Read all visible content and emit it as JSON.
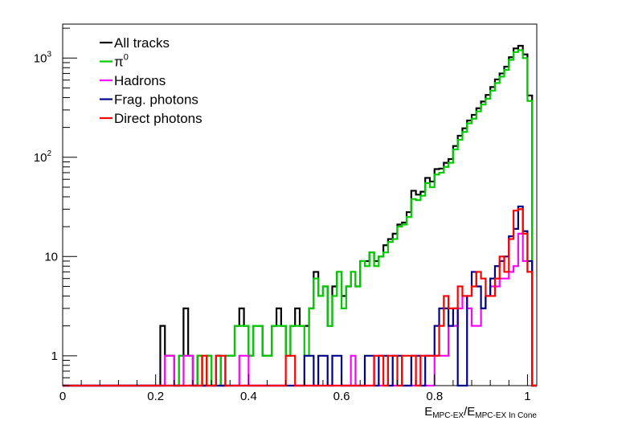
{
  "chart_data": {
    "type": "line",
    "title": "",
    "xlabel": {
      "main": "E",
      "sub1": "MPC-EX",
      "sep": "/E",
      "sub2": "MPC-EX In Cone"
    },
    "ylabel": "",
    "xlim": [
      0,
      1.02
    ],
    "ylim": [
      0.5,
      2200
    ],
    "y_scale": "log",
    "x_ticks": [
      "0",
      "0.2",
      "0.4",
      "0.6",
      "0.8",
      "1"
    ],
    "x_tick_values": [
      0,
      0.2,
      0.4,
      0.6,
      0.8,
      1
    ],
    "y_ticks": [
      {
        "value": 1,
        "label": "1"
      },
      {
        "value": 10,
        "label": "10"
      },
      {
        "value": 100,
        "base": "10",
        "exp": "2"
      },
      {
        "value": 1000,
        "base": "10",
        "exp": "3"
      }
    ],
    "grid": false,
    "legend_placement": "top-left",
    "bin_width": 0.01,
    "series": [
      {
        "name": "All tracks",
        "color": "#000000",
        "bins": [
          [
            0.21,
            2
          ],
          [
            0.22,
            1
          ],
          [
            0.23,
            1
          ],
          [
            0.25,
            1
          ],
          [
            0.26,
            3
          ],
          [
            0.27,
            1
          ],
          [
            0.29,
            1
          ],
          [
            0.31,
            1
          ],
          [
            0.33,
            1
          ],
          [
            0.35,
            1
          ],
          [
            0.36,
            1
          ],
          [
            0.37,
            2
          ],
          [
            0.38,
            3
          ],
          [
            0.39,
            2
          ],
          [
            0.4,
            1
          ],
          [
            0.41,
            2
          ],
          [
            0.42,
            2
          ],
          [
            0.43,
            1
          ],
          [
            0.44,
            1
          ],
          [
            0.45,
            2
          ],
          [
            0.46,
            3
          ],
          [
            0.47,
            2
          ],
          [
            0.48,
            1
          ],
          [
            0.49,
            2
          ],
          [
            0.5,
            3
          ],
          [
            0.51,
            2
          ],
          [
            0.52,
            2
          ],
          [
            0.53,
            3
          ],
          [
            0.54,
            7
          ],
          [
            0.55,
            4
          ],
          [
            0.56,
            5
          ],
          [
            0.57,
            2
          ],
          [
            0.58,
            5
          ],
          [
            0.59,
            7
          ],
          [
            0.6,
            4
          ],
          [
            0.61,
            5
          ],
          [
            0.62,
            7
          ],
          [
            0.63,
            5
          ],
          [
            0.64,
            9
          ],
          [
            0.65,
            9
          ],
          [
            0.66,
            11
          ],
          [
            0.67,
            9
          ],
          [
            0.68,
            10
          ],
          [
            0.69,
            13
          ],
          [
            0.7,
            15
          ],
          [
            0.71,
            17
          ],
          [
            0.72,
            21
          ],
          [
            0.73,
            22
          ],
          [
            0.74,
            28
          ],
          [
            0.75,
            46
          ],
          [
            0.76,
            42
          ],
          [
            0.77,
            45
          ],
          [
            0.78,
            62
          ],
          [
            0.79,
            57
          ],
          [
            0.8,
            76
          ],
          [
            0.81,
            77
          ],
          [
            0.82,
            88
          ],
          [
            0.83,
            96
          ],
          [
            0.84,
            130
          ],
          [
            0.85,
            165
          ],
          [
            0.86,
            196
          ],
          [
            0.87,
            235
          ],
          [
            0.88,
            268
          ],
          [
            0.89,
            312
          ],
          [
            0.9,
            365
          ],
          [
            0.91,
            425
          ],
          [
            0.92,
            510
          ],
          [
            0.93,
            610
          ],
          [
            0.94,
            700
          ],
          [
            0.95,
            820
          ],
          [
            0.96,
            1020
          ],
          [
            0.97,
            1250
          ],
          [
            0.98,
            1330
          ],
          [
            0.99,
            1090
          ],
          [
            1.0,
            420
          ]
        ]
      },
      {
        "name": "π⁰",
        "label_base": "π",
        "label_sup": "0",
        "color": "#00cc00",
        "bins": [
          [
            0.22,
            1
          ],
          [
            0.23,
            1
          ],
          [
            0.25,
            1
          ],
          [
            0.26,
            1
          ],
          [
            0.27,
            1
          ],
          [
            0.29,
            1
          ],
          [
            0.31,
            1
          ],
          [
            0.33,
            1
          ],
          [
            0.35,
            1
          ],
          [
            0.36,
            1
          ],
          [
            0.37,
            2
          ],
          [
            0.38,
            2
          ],
          [
            0.39,
            2
          ],
          [
            0.4,
            1
          ],
          [
            0.41,
            2
          ],
          [
            0.42,
            2
          ],
          [
            0.43,
            1
          ],
          [
            0.44,
            1
          ],
          [
            0.45,
            2
          ],
          [
            0.46,
            2
          ],
          [
            0.47,
            2
          ],
          [
            0.48,
            1
          ],
          [
            0.49,
            2
          ],
          [
            0.5,
            2
          ],
          [
            0.51,
            2
          ],
          [
            0.52,
            1
          ],
          [
            0.53,
            3
          ],
          [
            0.54,
            6
          ],
          [
            0.55,
            4
          ],
          [
            0.56,
            5
          ],
          [
            0.57,
            2
          ],
          [
            0.58,
            4
          ],
          [
            0.59,
            7
          ],
          [
            0.6,
            3
          ],
          [
            0.61,
            5
          ],
          [
            0.62,
            7
          ],
          [
            0.63,
            5
          ],
          [
            0.64,
            9
          ],
          [
            0.65,
            8
          ],
          [
            0.66,
            11
          ],
          [
            0.67,
            8
          ],
          [
            0.68,
            10
          ],
          [
            0.69,
            11
          ],
          [
            0.7,
            14
          ],
          [
            0.71,
            15
          ],
          [
            0.72,
            20
          ],
          [
            0.73,
            21
          ],
          [
            0.74,
            25
          ],
          [
            0.75,
            38
          ],
          [
            0.76,
            37
          ],
          [
            0.77,
            41
          ],
          [
            0.78,
            55
          ],
          [
            0.79,
            50
          ],
          [
            0.8,
            67
          ],
          [
            0.81,
            70
          ],
          [
            0.82,
            80
          ],
          [
            0.83,
            88
          ],
          [
            0.84,
            120
          ],
          [
            0.85,
            150
          ],
          [
            0.86,
            180
          ],
          [
            0.87,
            220
          ],
          [
            0.88,
            245
          ],
          [
            0.89,
            290
          ],
          [
            0.9,
            340
          ],
          [
            0.91,
            390
          ],
          [
            0.92,
            470
          ],
          [
            0.93,
            560
          ],
          [
            0.94,
            650
          ],
          [
            0.95,
            760
          ],
          [
            0.96,
            960
          ],
          [
            0.97,
            1150
          ],
          [
            0.98,
            1200
          ],
          [
            0.99,
            1000
          ],
          [
            1.0,
            370
          ]
        ]
      },
      {
        "name": "Hadrons",
        "color": "#ff00ff",
        "bins": [
          [
            0.22,
            1
          ],
          [
            0.23,
            1
          ],
          [
            0.26,
            1
          ],
          [
            0.27,
            1
          ],
          [
            0.38,
            1
          ],
          [
            0.39,
            1
          ],
          [
            0.62,
            1
          ],
          [
            0.8,
            1
          ],
          [
            0.81,
            1
          ],
          [
            0.82,
            1
          ],
          [
            0.83,
            2
          ],
          [
            0.84,
            2
          ],
          [
            0.85,
            3
          ],
          [
            0.86,
            4
          ],
          [
            0.87,
            3
          ],
          [
            0.88,
            2
          ],
          [
            0.89,
            2
          ],
          [
            0.9,
            3
          ],
          [
            0.91,
            4
          ],
          [
            0.92,
            5
          ],
          [
            0.93,
            5
          ],
          [
            0.94,
            6
          ],
          [
            0.95,
            6
          ],
          [
            0.96,
            7
          ],
          [
            0.97,
            8
          ],
          [
            0.98,
            17
          ],
          [
            0.99,
            9
          ],
          [
            1.0,
            7
          ]
        ]
      },
      {
        "name": "Frag. photons",
        "color": "#00008b",
        "bins": [
          [
            0.52,
            1
          ],
          [
            0.53,
            1
          ],
          [
            0.55,
            1
          ],
          [
            0.56,
            1
          ],
          [
            0.58,
            1
          ],
          [
            0.59,
            1
          ],
          [
            0.65,
            1
          ],
          [
            0.66,
            1
          ],
          [
            0.68,
            1
          ],
          [
            0.69,
            1
          ],
          [
            0.71,
            1
          ],
          [
            0.72,
            1
          ],
          [
            0.75,
            1
          ],
          [
            0.76,
            1
          ],
          [
            0.78,
            1
          ],
          [
            0.79,
            1
          ],
          [
            0.8,
            2
          ],
          [
            0.81,
            3
          ],
          [
            0.82,
            3
          ],
          [
            0.83,
            2
          ],
          [
            0.84,
            3
          ],
          [
            0.87,
            4
          ],
          [
            0.88,
            7
          ],
          [
            0.89,
            5
          ],
          [
            0.9,
            3
          ],
          [
            0.91,
            4
          ],
          [
            0.92,
            6
          ],
          [
            0.93,
            8
          ],
          [
            0.94,
            9
          ],
          [
            0.95,
            10
          ],
          [
            0.96,
            16
          ],
          [
            0.97,
            19
          ],
          [
            0.98,
            32
          ],
          [
            0.99,
            18
          ],
          [
            1.0,
            9
          ]
        ]
      },
      {
        "name": "Direct photons",
        "color": "#ff0000",
        "bins": [
          [
            0.3,
            1
          ],
          [
            0.33,
            1
          ],
          [
            0.34,
            1
          ],
          [
            0.48,
            1
          ],
          [
            0.49,
            1
          ],
          [
            0.67,
            1
          ],
          [
            0.68,
            1
          ],
          [
            0.7,
            1
          ],
          [
            0.71,
            1
          ],
          [
            0.73,
            1
          ],
          [
            0.74,
            1
          ],
          [
            0.75,
            1
          ],
          [
            0.77,
            1
          ],
          [
            0.78,
            1
          ],
          [
            0.79,
            1
          ],
          [
            0.8,
            1
          ],
          [
            0.81,
            2
          ],
          [
            0.82,
            4
          ],
          [
            0.83,
            3
          ],
          [
            0.84,
            3
          ],
          [
            0.85,
            5
          ],
          [
            0.86,
            4
          ],
          [
            0.87,
            4
          ],
          [
            0.88,
            5
          ],
          [
            0.89,
            7
          ],
          [
            0.9,
            6
          ],
          [
            0.91,
            4
          ],
          [
            0.92,
            4
          ],
          [
            0.93,
            6
          ],
          [
            0.94,
            10
          ],
          [
            0.95,
            7
          ],
          [
            0.96,
            15
          ],
          [
            0.97,
            29
          ],
          [
            0.98,
            30
          ],
          [
            0.99,
            17
          ],
          [
            1.0,
            7
          ]
        ]
      }
    ]
  }
}
